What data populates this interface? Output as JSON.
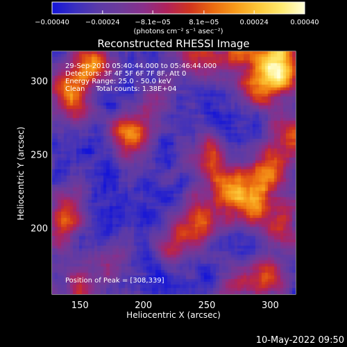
{
  "chart_data": {
    "type": "heatmap",
    "title": "Reconstructed RHESSI Image",
    "xlabel": "Heliocentric X (arcsec)",
    "ylabel": "Heliocentric Y (arcsec)",
    "xlim": [
      128,
      320
    ],
    "ylim": [
      155,
      320
    ],
    "xticks": [
      150,
      200,
      250,
      300
    ],
    "yticks": [
      200,
      250,
      300
    ],
    "colorbar": {
      "min": -0.0004,
      "max": 0.0004,
      "ticks": [
        {
          "value": -0.0004,
          "label": "−0.00040"
        },
        {
          "value": -0.00024,
          "label": "−0.00024"
        },
        {
          "value": -8.1e-05,
          "label": "−8.1e−05"
        },
        {
          "value": 8.1e-05,
          "label": "8.1e−05"
        },
        {
          "value": 0.00024,
          "label": "0.00024"
        },
        {
          "value": 0.0004,
          "label": "0.00040"
        }
      ],
      "units_label": "(photons cm⁻² s⁻¹ asec⁻²)"
    },
    "annotations": [
      "29-Sep-2010 05:40:44.000 to 05:46:44.000",
      "Detectors: 3F 4F 5F 6F 7F 8F, Att 0",
      "Energy Range: 25.0 - 50.0 keV",
      "Clean     Total counts: 1.38E+04",
      "Position of Peak = [308,339]"
    ],
    "timestamp": "10-May-2022 09:50",
    "colormap_stops": [
      "#1414d8",
      "#3a2fc0",
      "#5b3aa8",
      "#6e3a9a",
      "#8a2f8a",
      "#b0225a",
      "#d0341e",
      "#ea6a10",
      "#f79b1a",
      "#fcc83a",
      "#ffea70",
      "#ffffd8"
    ],
    "background": "#000000",
    "grid": false,
    "hotspots": [
      {
        "x": 310,
        "y": 305,
        "amp": 1.3
      },
      {
        "x": 290,
        "y": 295,
        "amp": 1.0
      },
      {
        "x": 250,
        "y": 315,
        "amp": 0.9
      },
      {
        "x": 275,
        "y": 320,
        "amp": 0.9
      },
      {
        "x": 300,
        "y": 318,
        "amp": 1.1
      },
      {
        "x": 190,
        "y": 263,
        "amp": 1.3
      },
      {
        "x": 160,
        "y": 312,
        "amp": 1.1
      },
      {
        "x": 140,
        "y": 300,
        "amp": 0.7
      },
      {
        "x": 145,
        "y": 285,
        "amp": 0.8
      },
      {
        "x": 270,
        "y": 225,
        "amp": 1.3
      },
      {
        "x": 300,
        "y": 240,
        "amp": 1.1
      },
      {
        "x": 290,
        "y": 215,
        "amp": 1.0
      },
      {
        "x": 250,
        "y": 245,
        "amp": 1.0
      },
      {
        "x": 245,
        "y": 205,
        "amp": 1.0
      },
      {
        "x": 225,
        "y": 190,
        "amp": 0.8
      },
      {
        "x": 310,
        "y": 200,
        "amp": 0.9
      },
      {
        "x": 300,
        "y": 165,
        "amp": 0.9
      },
      {
        "x": 275,
        "y": 160,
        "amp": 0.7
      },
      {
        "x": 140,
        "y": 215,
        "amp": 0.8
      },
      {
        "x": 135,
        "y": 195,
        "amp": 0.6
      },
      {
        "x": 150,
        "y": 160,
        "amp": 0.7
      },
      {
        "x": 175,
        "y": 175,
        "amp": 0.5
      },
      {
        "x": 212,
        "y": 285,
        "amp": 0.5
      },
      {
        "x": 230,
        "y": 320,
        "amp": 0.6
      },
      {
        "x": 315,
        "y": 265,
        "amp": 0.8
      }
    ]
  }
}
